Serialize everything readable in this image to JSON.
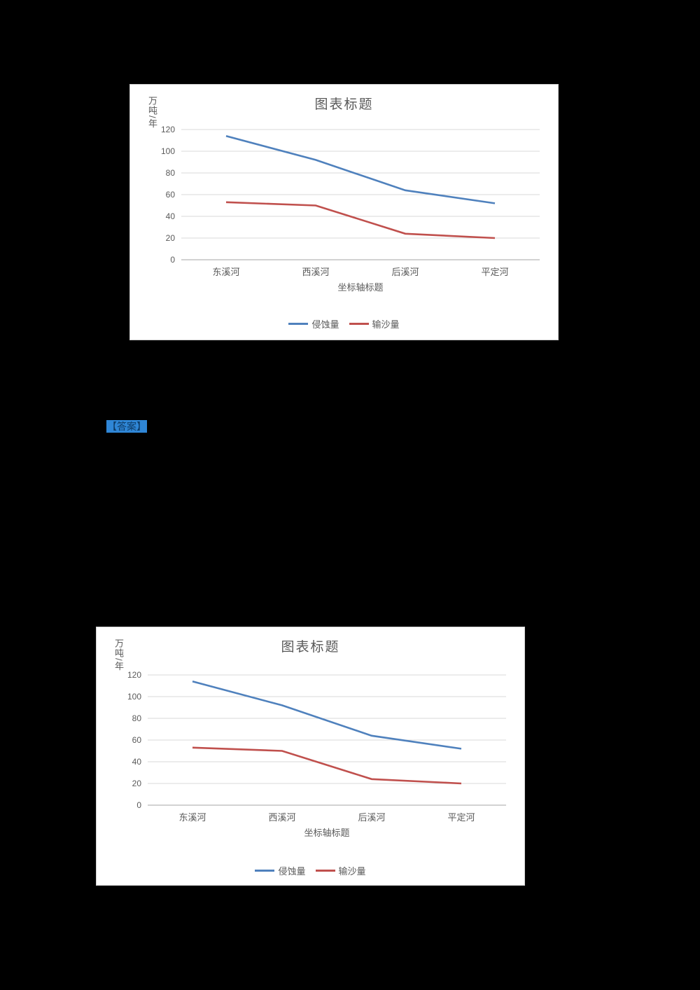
{
  "page": {
    "background": "#000000"
  },
  "highlighted_text": {
    "label": "【答案】",
    "background": "#2f86d6",
    "color": "#0d3b66"
  },
  "chart_data": [
    {
      "type": "line",
      "title": "图表标题",
      "ylabel": "万吨/年",
      "xlabel": "坐标轴标题",
      "categories": [
        "东溪河",
        "西溪河",
        "后溪河",
        "平定河"
      ],
      "series": [
        {
          "name": "侵蚀量",
          "color": "#4F81BD",
          "values": [
            114,
            92,
            64,
            52
          ]
        },
        {
          "name": "输沙量",
          "color": "#C0504D",
          "values": [
            53,
            50,
            24,
            20
          ]
        }
      ],
      "ylim": [
        0,
        120
      ],
      "ytick_step": 20,
      "yticks": [
        0,
        20,
        40,
        60,
        80,
        100,
        120
      ],
      "grid": true,
      "legend_position": "bottom",
      "grid_color": "#d9d9d9",
      "axis_color": "#a6a6a6",
      "text_color": "#595959"
    },
    {
      "type": "line",
      "title": "图表标题",
      "ylabel": "万吨/年",
      "xlabel": "坐标轴标题",
      "categories": [
        "东溪河",
        "西溪河",
        "后溪河",
        "平定河"
      ],
      "series": [
        {
          "name": "侵蚀量",
          "color": "#4F81BD",
          "values": [
            114,
            92,
            64,
            52
          ]
        },
        {
          "name": "输沙量",
          "color": "#C0504D",
          "values": [
            53,
            50,
            24,
            20
          ]
        }
      ],
      "ylim": [
        0,
        120
      ],
      "ytick_step": 20,
      "yticks": [
        0,
        20,
        40,
        60,
        80,
        100,
        120
      ],
      "grid": true,
      "legend_position": "bottom",
      "grid_color": "#d9d9d9",
      "axis_color": "#a6a6a6",
      "text_color": "#595959"
    }
  ]
}
